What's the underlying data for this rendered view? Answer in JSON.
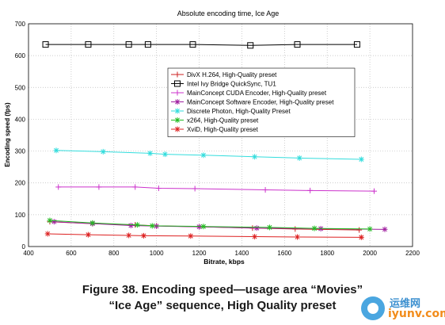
{
  "chart_data": {
    "type": "line",
    "title": "Absolute encoding time, Ice Age",
    "xlabel": "Bitrate, kbps",
    "ylabel": "Encoding speed (fps)",
    "xlim": [
      400,
      2200
    ],
    "ylim": [
      0,
      700
    ],
    "xticks": [
      400,
      600,
      800,
      1000,
      1200,
      1400,
      1600,
      1800,
      2000,
      2200
    ],
    "yticks": [
      0,
      100,
      200,
      300,
      400,
      500,
      600,
      700
    ],
    "grid": true,
    "legend_position": "top-center",
    "series": [
      {
        "name": "DivX H.264, High-Quality preset",
        "color": "#cc2222",
        "marker": "plus",
        "x": [
          500,
          700,
          900,
          1000,
          1200,
          1450,
          1650,
          1950
        ],
        "y": [
          78,
          72,
          68,
          65,
          62,
          58,
          55,
          52
        ]
      },
      {
        "name": "Intel Ivy Bridge QuickSync, TU1",
        "color": "#000000",
        "marker": "square",
        "x": [
          480,
          680,
          870,
          960,
          1170,
          1440,
          1660,
          1940
        ],
        "y": [
          635,
          635,
          635,
          635,
          635,
          632,
          635,
          635
        ]
      },
      {
        "name": "MainConcept CUDA Encoder, High-Quality preset",
        "color": "#cc33cc",
        "marker": "plus",
        "x": [
          540,
          730,
          900,
          1010,
          1180,
          1510,
          1720,
          2020
        ],
        "y": [
          187,
          187,
          187,
          183,
          182,
          178,
          176,
          174
        ]
      },
      {
        "name": "MainConcept Software Encoder, High-Quality preset",
        "color": "#a020a0",
        "marker": "star",
        "x": [
          520,
          700,
          880,
          1000,
          1200,
          1470,
          1770,
          2070
        ],
        "y": [
          78,
          72,
          66,
          64,
          62,
          58,
          56,
          54
        ]
      },
      {
        "name": "Discrete Photon, High-Quality Preset",
        "color": "#33dddd",
        "marker": "star",
        "x": [
          530,
          750,
          970,
          1040,
          1220,
          1460,
          1670,
          1960
        ],
        "y": [
          302,
          298,
          293,
          290,
          287,
          282,
          278,
          274
        ]
      },
      {
        "name": "x264, High-Quality preset",
        "color": "#22bb22",
        "marker": "star",
        "x": [
          500,
          700,
          910,
          980,
          1220,
          1530,
          1740,
          2000
        ],
        "y": [
          82,
          74,
          68,
          65,
          63,
          60,
          57,
          55
        ]
      },
      {
        "name": "XviD, High-Quality preset",
        "color": "#dd2222",
        "marker": "star",
        "x": [
          490,
          680,
          870,
          940,
          1160,
          1460,
          1660,
          1960
        ],
        "y": [
          40,
          37,
          35,
          34,
          33,
          31,
          30,
          29
        ]
      }
    ]
  },
  "caption": {
    "line1": "Figure 38.    Encoding speed—usage area “Movies”",
    "line2": "“Ice Age” sequence, High Quality preset"
  },
  "watermark": {
    "cn": "运维网",
    "en": "iyunv.com"
  }
}
